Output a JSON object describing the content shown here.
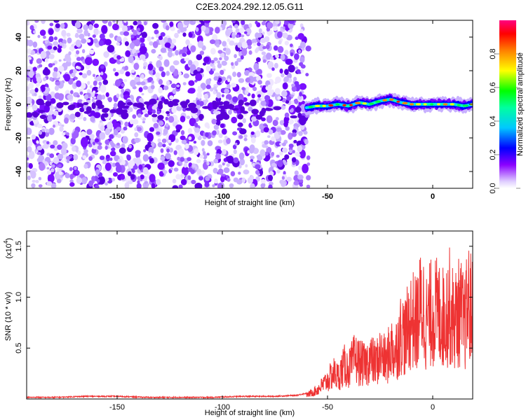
{
  "title": "C2E3.2024.292.12.05.G11",
  "chart_data": [
    {
      "type": "heatmap",
      "xlabel": "Height of straight line (km)",
      "ylabel": "Frequency (Hz)",
      "xlim": [
        -193,
        19
      ],
      "ylim": [
        -50,
        50
      ],
      "x_ticks": [
        "-150",
        "-100",
        "-50",
        "0"
      ],
      "x_tick_values": [
        -150,
        -100,
        -50,
        0
      ],
      "y_ticks": [
        "40",
        "20",
        "0",
        "-20",
        "-40"
      ],
      "y_tick_values": [
        40,
        20,
        0,
        -20,
        -40
      ],
      "noise_region_x": [
        -193,
        -61
      ],
      "signal_region_x": [
        -61,
        19
      ],
      "signal_track": {
        "x": [
          -60,
          -55,
          -50,
          -45,
          -40,
          -35,
          -30,
          -25,
          -20,
          -15,
          -10,
          -5,
          0,
          5,
          10,
          15,
          19
        ],
        "freq": [
          -2,
          -1,
          -1,
          0,
          -1,
          1,
          0,
          2,
          3,
          1,
          0,
          0,
          0,
          0,
          0,
          -1,
          0
        ]
      },
      "colorbar": {
        "label": "Normalized spectral amplitude",
        "range": [
          0,
          1
        ],
        "ticks": [
          "0.0",
          "0.2",
          "0.4",
          "0.6",
          "0.8"
        ],
        "tick_values": [
          0.0,
          0.2,
          0.4,
          0.6,
          0.8
        ],
        "colors": [
          "#ffffff",
          "#d8c8ff",
          "#7a00ff",
          "#0000ff",
          "#00ffff",
          "#00ff00",
          "#ffff00",
          "#ff8000",
          "#ff0000",
          "#ff0080"
        ]
      },
      "grid": false
    },
    {
      "type": "line",
      "xlabel": "Height of straight line (km)",
      "ylabel": "SNR (10 * v/v)",
      "scale_note": "(x10",
      "scale_exp": "4",
      "scale_close": ")",
      "xlim": [
        -193,
        19
      ],
      "ylim": [
        0,
        1.65
      ],
      "x_ticks": [
        "-150",
        "-100",
        "-50",
        "0"
      ],
      "x_tick_values": [
        -150,
        -100,
        -50,
        0
      ],
      "y_ticks": [
        "1.5",
        "1.0",
        "0.5"
      ],
      "y_tick_values": [
        1.5,
        1.0,
        0.5
      ],
      "line_color": "#ee3333",
      "series": [
        {
          "x": [
            -193,
            -180,
            -165,
            -150,
            -135,
            -120,
            -105,
            -90,
            -75,
            -65,
            -60,
            -55,
            -50,
            -47,
            -45,
            -42,
            -40,
            -37,
            -35,
            -32,
            -30,
            -27,
            -25,
            -22,
            -20,
            -18,
            -15,
            -13,
            -10,
            -8,
            -5,
            -3,
            0,
            3,
            5,
            8,
            10,
            13,
            15,
            17,
            19
          ],
          "values": [
            0.01,
            0.01,
            0.02,
            0.02,
            0.01,
            0.01,
            0.01,
            0.02,
            0.02,
            0.03,
            0.05,
            0.12,
            0.25,
            0.35,
            0.3,
            0.45,
            0.4,
            0.55,
            0.5,
            0.45,
            0.55,
            0.48,
            0.6,
            0.5,
            0.7,
            0.62,
            0.9,
            0.85,
            1.1,
            1.0,
            1.3,
            1.05,
            1.2,
            1.15,
            1.1,
            1.25,
            1.05,
            1.2,
            1.0,
            1.3,
            1.15
          ]
        }
      ],
      "grid": false
    }
  ]
}
